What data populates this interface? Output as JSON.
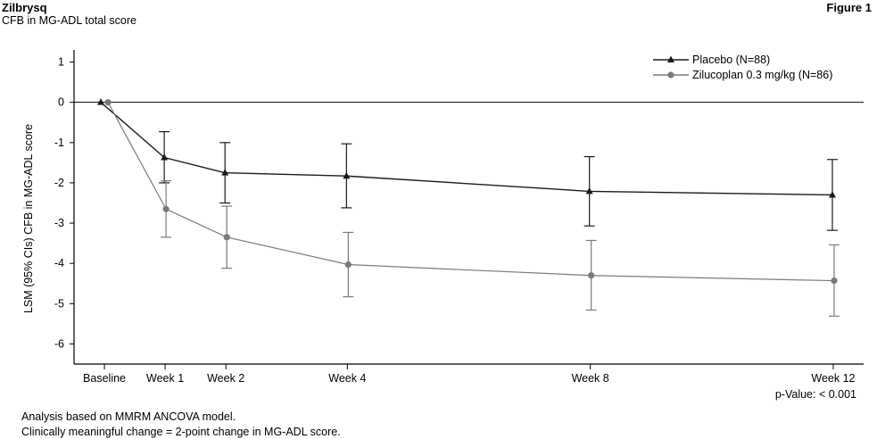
{
  "header": {
    "title": "Zilbrysq",
    "subtitle": "CFB in MG-ADL total score",
    "figure_label": "Figure 1"
  },
  "footnotes": {
    "line1": "Analysis based on MMRM ANCOVA model.",
    "line2": "Clinically meaningful change = 2-point change in MG-ADL score."
  },
  "colors": {
    "placebo": "#1a1a1a",
    "zilucoplan": "#7a7a7a",
    "axis": "#000000"
  },
  "chart_data": {
    "type": "line",
    "ylabel": "LSM (95% CIs) CFB in MG-ADL score",
    "xlabel": "",
    "ylim": [
      -6.5,
      1.3
    ],
    "yticks": [
      1,
      0,
      -1,
      -2,
      -3,
      -4,
      -5,
      -6
    ],
    "categories": [
      "Baseline",
      "Week 1",
      "Week 2",
      "Week 4",
      "Week 8",
      "Week 12"
    ],
    "x_weeks": [
      0,
      1,
      2,
      4,
      8,
      12
    ],
    "reference_line": 0,
    "legend_position": "top-right",
    "annotation": "p-Value: < 0.001",
    "series": [
      {
        "name": "Placebo (N=88)",
        "marker": "triangle",
        "values": [
          0,
          -1.37,
          -1.75,
          -1.83,
          -2.21,
          -2.3
        ],
        "lower": [
          0,
          -2.0,
          -2.5,
          -2.62,
          -3.07,
          -3.18
        ],
        "upper": [
          0,
          -0.73,
          -1.0,
          -1.03,
          -1.35,
          -1.42
        ]
      },
      {
        "name": "Zilucoplan 0.3 mg/kg (N=86)",
        "marker": "circle",
        "values": [
          0,
          -2.65,
          -3.35,
          -4.03,
          -4.3,
          -4.43
        ],
        "lower": [
          0,
          -3.35,
          -4.12,
          -4.83,
          -5.16,
          -5.31
        ],
        "upper": [
          0,
          -1.95,
          -2.58,
          -3.23,
          -3.43,
          -3.54
        ]
      }
    ]
  }
}
